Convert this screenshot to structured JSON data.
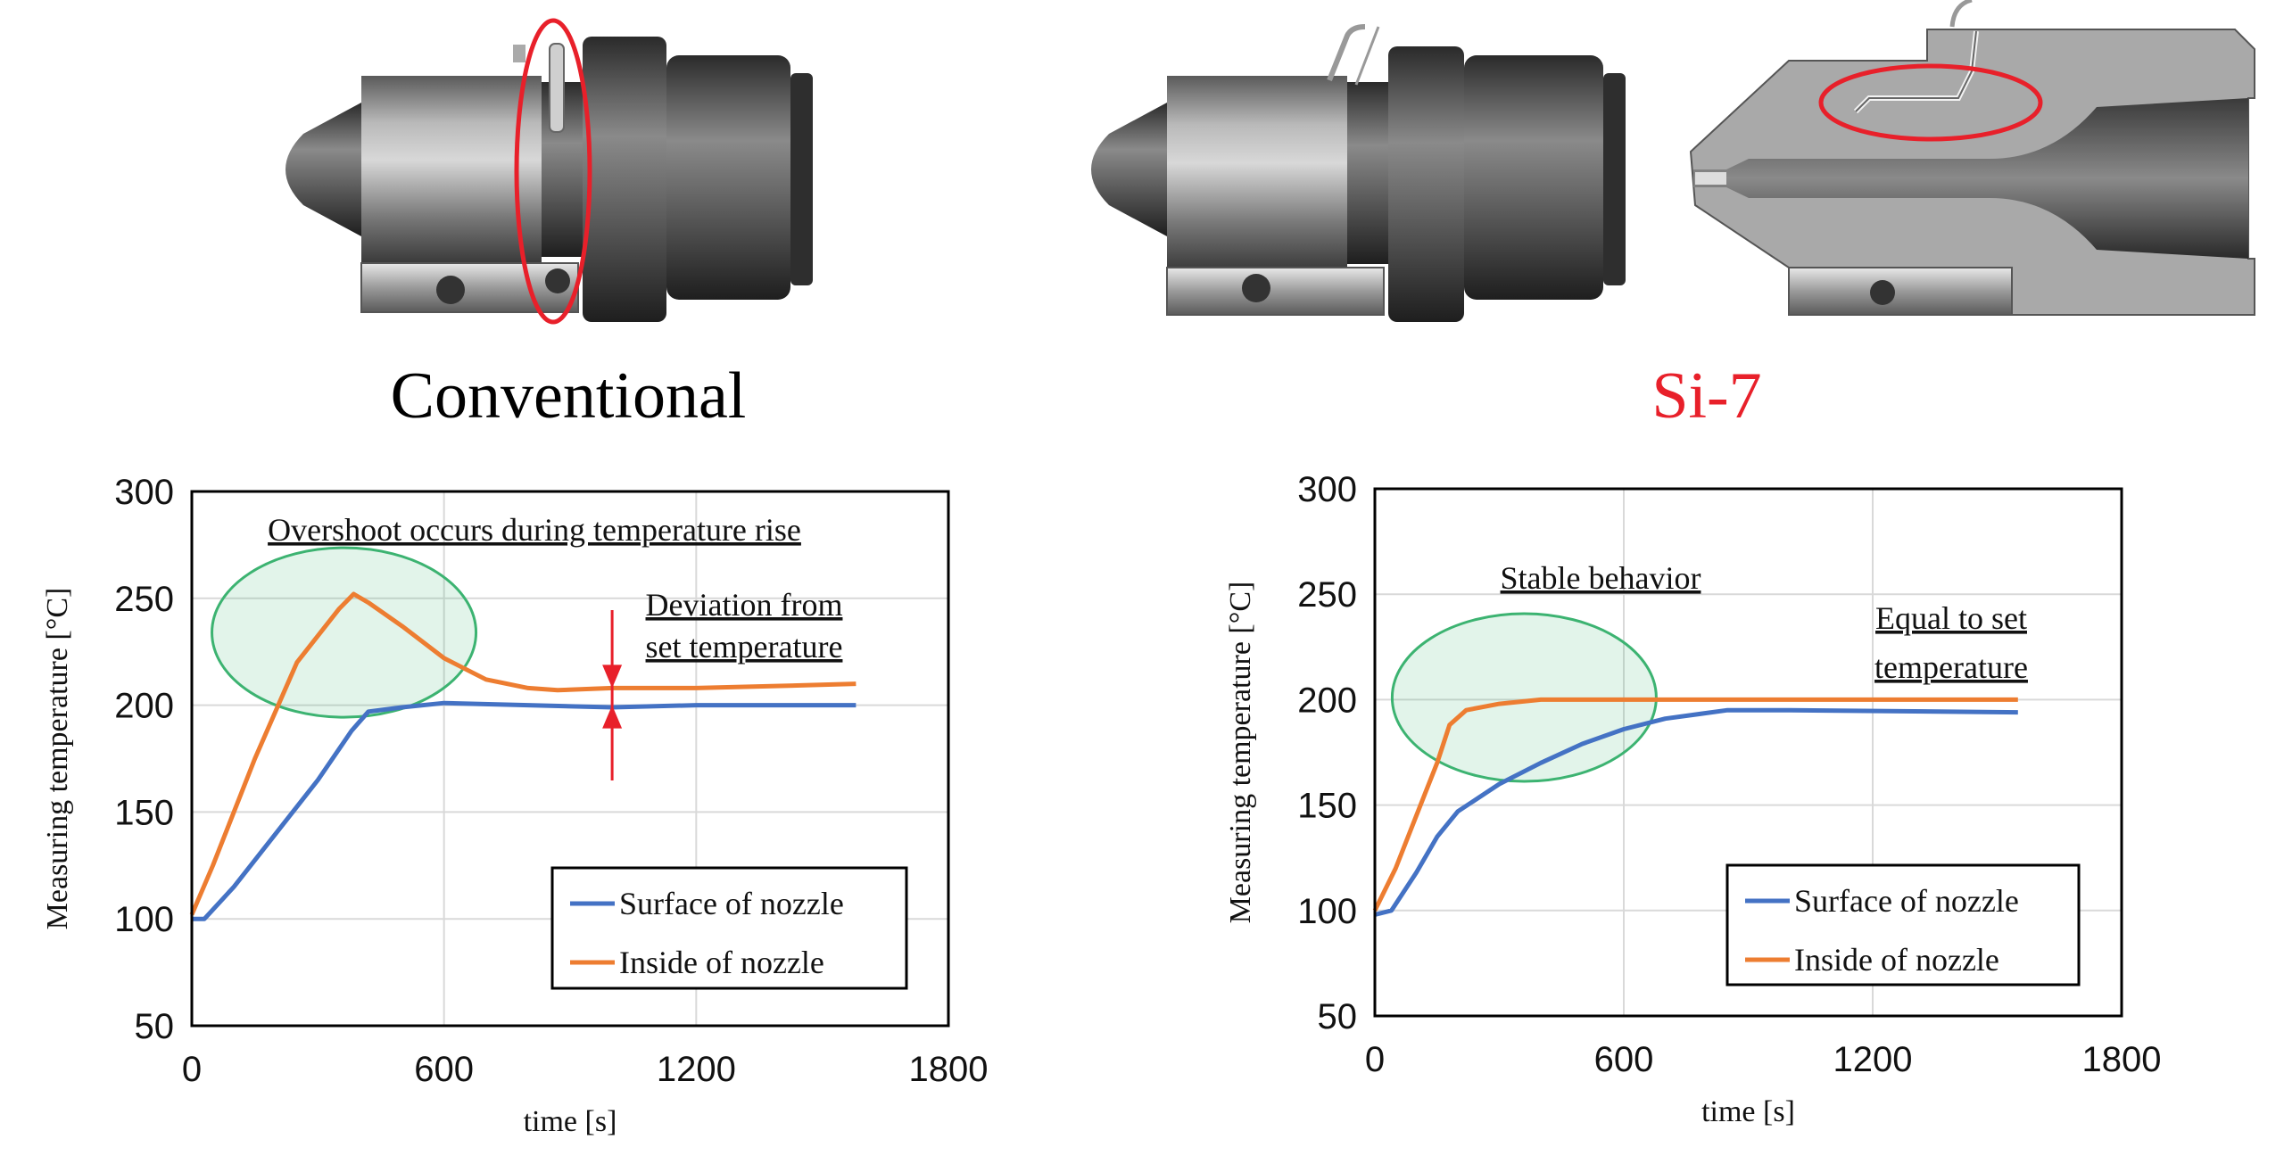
{
  "captions": {
    "left": "Conventional",
    "right": "Si-7"
  },
  "colors": {
    "surface": "#4472C4",
    "inside": "#ED7D31",
    "highlight_circle": "#3CB371",
    "arrow": "#E8202A",
    "si7_caption": "#E8202A",
    "red_mark": "#E8202A"
  },
  "chart_data": [
    {
      "type": "line",
      "title": "Conventional",
      "xlabel": "time [s]",
      "ylabel": "Measuring temperature [°C]",
      "xlim": [
        0,
        1800
      ],
      "ylim": [
        50,
        300
      ],
      "xticks": [
        "0",
        "600",
        "1200",
        "1800"
      ],
      "yticks": [
        "50",
        "100",
        "150",
        "200",
        "250",
        "300"
      ],
      "grid": true,
      "legend_position": "bottom-right",
      "series": [
        {
          "name": "Surface of nozzle",
          "color": "#4472C4",
          "x": [
            0,
            30,
            100,
            200,
            300,
            380,
            420,
            500,
            600,
            800,
            1000,
            1200,
            1400,
            1580
          ],
          "y": [
            100,
            100,
            115,
            140,
            165,
            188,
            197,
            199,
            201,
            200,
            199,
            200,
            200,
            200
          ]
        },
        {
          "name": "Inside of nozzle",
          "color": "#ED7D31",
          "x": [
            0,
            50,
            150,
            250,
            350,
            385,
            420,
            500,
            600,
            700,
            800,
            870,
            1000,
            1200,
            1400,
            1580
          ],
          "y": [
            102,
            125,
            175,
            220,
            245,
            252,
            248,
            237,
            222,
            212,
            208,
            207,
            208,
            208,
            209,
            210
          ]
        }
      ],
      "highlight": {
        "x": 362,
        "y": 234
      },
      "annotations": [
        {
          "text": "Overshoot occurs during temperature rise"
        },
        {
          "text": "Deviation from"
        },
        {
          "text": "set temperature"
        }
      ],
      "deviation_arrow": {
        "x": 1000,
        "from": 208,
        "to": 200
      }
    },
    {
      "type": "line",
      "title": "Si-7",
      "xlabel": "time [s]",
      "ylabel": "Measuring temperature [°C]",
      "xlim": [
        0,
        1800
      ],
      "ylim": [
        50,
        300
      ],
      "xticks": [
        "0",
        "600",
        "1200",
        "1800"
      ],
      "yticks": [
        "50",
        "100",
        "150",
        "200",
        "250",
        "300"
      ],
      "grid": true,
      "legend_position": "bottom-right",
      "series": [
        {
          "name": "Surface of nozzle",
          "color": "#4472C4",
          "x": [
            0,
            40,
            100,
            150,
            200,
            300,
            400,
            500,
            600,
            700,
            850,
            1000,
            1550
          ],
          "y": [
            98,
            100,
            118,
            135,
            147,
            160,
            170,
            179,
            186,
            191,
            195,
            195,
            194
          ]
        },
        {
          "name": "Inside of nozzle",
          "color": "#ED7D31",
          "x": [
            0,
            50,
            100,
            150,
            180,
            220,
            300,
            400,
            600,
            1550
          ],
          "y": [
            100,
            120,
            145,
            170,
            188,
            195,
            198,
            200,
            200,
            200
          ]
        }
      ],
      "highlight": {
        "x": 360,
        "y": 201
      },
      "annotations": [
        {
          "text": "Stable behavior"
        },
        {
          "text": "Equal to set"
        },
        {
          "text": "temperature"
        }
      ]
    }
  ]
}
